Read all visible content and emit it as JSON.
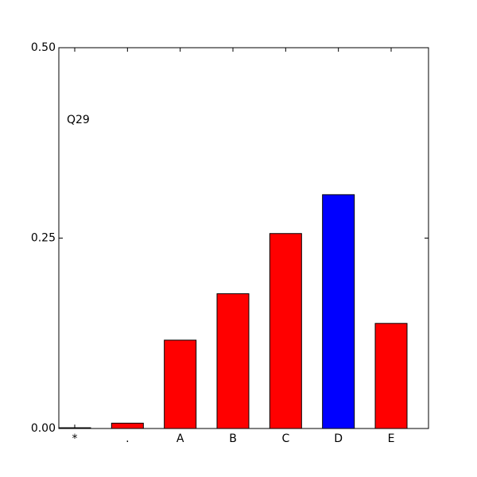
{
  "chart_data": {
    "type": "bar",
    "annotation": "Q29",
    "categories": [
      "*",
      ".",
      "A",
      "B",
      "C",
      "D",
      "E"
    ],
    "values": [
      0.001,
      0.007,
      0.116,
      0.177,
      0.256,
      0.307,
      0.138
    ],
    "colors": [
      "#ff0000",
      "#ff0000",
      "#ff0000",
      "#ff0000",
      "#ff0000",
      "#0000ff",
      "#ff0000"
    ],
    "ylim": [
      0,
      0.5
    ],
    "yticks": [
      {
        "value": 0,
        "label": "0.00"
      },
      {
        "value": 0.25,
        "label": "0.25"
      },
      {
        "value": 0.5,
        "label": "0.50"
      }
    ],
    "grid": false
  }
}
